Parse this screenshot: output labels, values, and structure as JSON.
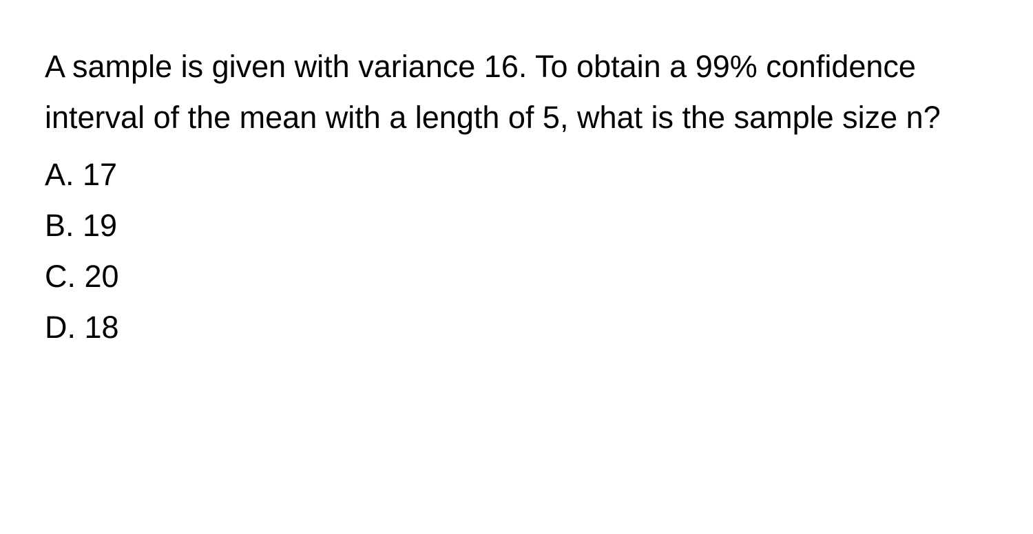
{
  "question": {
    "text": "A sample is given with variance 16. To obtain a 99% confidence interval of the mean with a length of 5, what is the sample size n?"
  },
  "options": {
    "a": "A. 17",
    "b": "B. 19",
    "c": "C. 20",
    "d": "D. 18"
  },
  "styling": {
    "background_color": "#ffffff",
    "text_color": "#000000",
    "font_size": 45,
    "line_height": 1.65,
    "font_weight": 400
  }
}
